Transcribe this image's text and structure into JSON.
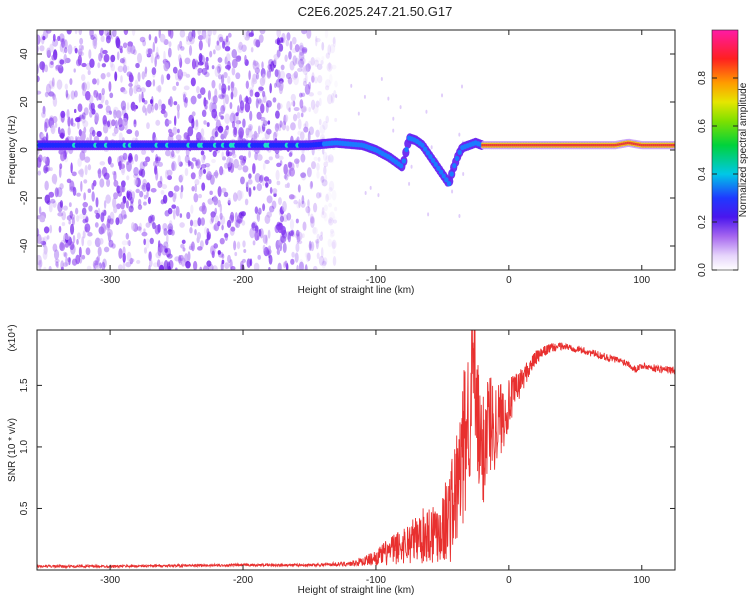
{
  "title": "C2E6.2025.247.21.50.G17",
  "colors": {
    "snr_line": "#e8302f",
    "ridge_core": "#e83a3a",
    "noise": "#7b2cf0"
  },
  "chart_data": [
    {
      "type": "heatmap",
      "name": "spectrogram",
      "xlabel": "Height of straight line (km)",
      "ylabel": "Frequency (Hz)",
      "xlim": [
        -355,
        125
      ],
      "ylim": [
        -50,
        50
      ],
      "xticks": [
        -300,
        -200,
        -100,
        0,
        100
      ],
      "xtick_labels": [
        "-300",
        "-200",
        "-100",
        "0",
        "100"
      ],
      "yticks": [
        -40,
        -20,
        0,
        20,
        40
      ],
      "ytick_labels": [
        "-40",
        "-20",
        "0",
        "20",
        "40"
      ],
      "colorbar": {
        "label": "Normalized spectral amplitude",
        "range": [
          0,
          1
        ],
        "ticks": [
          0.0,
          0.2,
          0.4,
          0.6,
          0.8
        ],
        "tick_labels": [
          "0.0",
          "0.2",
          "0.4",
          "0.6",
          "0.8"
        ]
      },
      "ridge": {
        "description": "dominant frequency trace",
        "x": [
          -355,
          -300,
          -250,
          -200,
          -150,
          -130,
          -110,
          -100,
          -90,
          -80,
          -75,
          -70,
          -65,
          -60,
          -55,
          -50,
          -45,
          -42,
          -38,
          -35,
          -30,
          -25,
          -20,
          0,
          20,
          60,
          80,
          90,
          100,
          125
        ],
        "y": [
          2,
          2,
          2,
          2,
          2,
          3,
          2,
          0,
          -3,
          -7,
          5,
          4,
          2,
          -2,
          -6,
          -10,
          -14,
          -8,
          -2,
          1,
          2,
          3,
          2,
          2,
          2,
          2,
          2,
          3,
          2,
          2
        ]
      },
      "noise_region": {
        "x_from": -355,
        "x_to": -130,
        "y_from": -50,
        "y_to": 50
      }
    },
    {
      "type": "line",
      "name": "snr",
      "xlabel": "Height of straight line (km)",
      "ylabel": "SNR (10 * v/v)",
      "y_multiplier": "(x10⁴)",
      "xlim": [
        -355,
        125
      ],
      "ylim": [
        0,
        1.95
      ],
      "xticks": [
        -300,
        -200,
        -100,
        0,
        100
      ],
      "xtick_labels": [
        "-300",
        "-200",
        "-100",
        "0",
        "100"
      ],
      "yticks": [
        0.5,
        1.0,
        1.5
      ],
      "ytick_labels": [
        "0.5",
        "1.0",
        "1.5"
      ],
      "series": [
        {
          "name": "SNR",
          "x": [
            -355,
            -300,
            -250,
            -200,
            -150,
            -120,
            -110,
            -100,
            -90,
            -80,
            -70,
            -60,
            -50,
            -45,
            -40,
            -35,
            -30,
            -27,
            -25,
            -22,
            -20,
            -18,
            -15,
            -12,
            -10,
            -5,
            0,
            10,
            20,
            30,
            40,
            50,
            60,
            70,
            80,
            90,
            95,
            100,
            110,
            125
          ],
          "y": [
            0.03,
            0.03,
            0.035,
            0.04,
            0.04,
            0.05,
            0.07,
            0.1,
            0.15,
            0.2,
            0.25,
            0.3,
            0.35,
            0.45,
            0.6,
            0.9,
            1.3,
            1.7,
            1.4,
            1.0,
            0.9,
            1.1,
            1.25,
            1.15,
            1.2,
            1.25,
            1.35,
            1.55,
            1.72,
            1.8,
            1.82,
            1.8,
            1.77,
            1.74,
            1.71,
            1.68,
            1.63,
            1.66,
            1.64,
            1.62
          ],
          "noise": [
            0.01,
            0.01,
            0.01,
            0.01,
            0.01,
            0.02,
            0.04,
            0.06,
            0.12,
            0.15,
            0.2,
            0.25,
            0.3,
            0.4,
            0.5,
            0.6,
            0.7,
            0.6,
            0.55,
            0.5,
            0.5,
            0.5,
            0.45,
            0.4,
            0.35,
            0.3,
            0.2,
            0.1,
            0.06,
            0.04,
            0.03,
            0.03,
            0.03,
            0.03,
            0.03,
            0.03,
            0.03,
            0.03,
            0.03,
            0.03
          ]
        }
      ]
    }
  ]
}
